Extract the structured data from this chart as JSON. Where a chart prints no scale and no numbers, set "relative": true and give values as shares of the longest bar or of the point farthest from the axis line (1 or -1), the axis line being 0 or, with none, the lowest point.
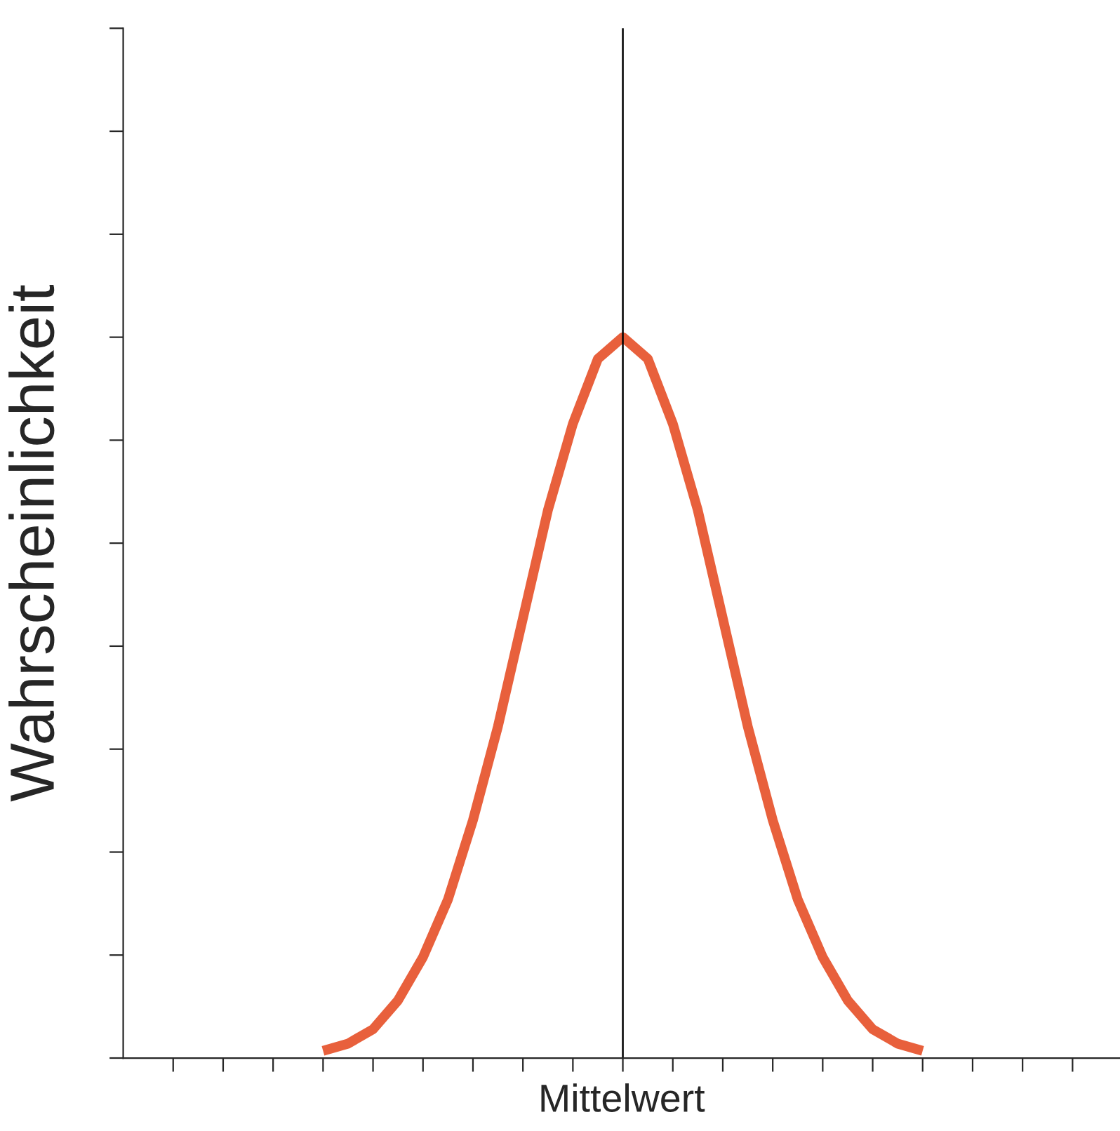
{
  "chart_data": {
    "type": "line",
    "relative": true,
    "xlabel": "Mittelwert",
    "ylabel": "Wahrscheinlichkeit",
    "categories": [
      null,
      null,
      null,
      null,
      null,
      null,
      null,
      null,
      null,
      null,
      null,
      null,
      null,
      null,
      null,
      null,
      null,
      null,
      null,
      null,
      null,
      null,
      null,
      null,
      null
    ],
    "series": [
      {
        "color": "#e8603c",
        "values": [
          0.01,
          0.02,
          0.04,
          0.08,
          0.14,
          0.22,
          0.33,
          0.46,
          0.61,
          0.76,
          0.88,
          0.97,
          1,
          0.97,
          0.88,
          0.76,
          0.61,
          0.46,
          0.33,
          0.22,
          0.14,
          0.08,
          0.04,
          0.02,
          0.01
        ]
      }
    ],
    "grid": false,
    "marker": "none",
    "line_style": "solid",
    "tick_labels": false
  }
}
